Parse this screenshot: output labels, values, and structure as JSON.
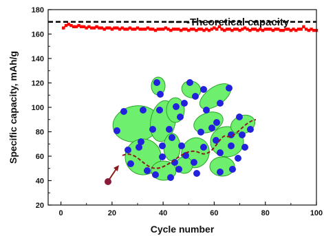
{
  "chart_data": {
    "type": "line",
    "xlabel": "Cycle number",
    "ylabel": "Specific capacity, mAh/g",
    "xlim": [
      -5,
      100
    ],
    "ylim": [
      20,
      180
    ],
    "xticks": [
      0,
      20,
      40,
      60,
      80,
      100
    ],
    "yticks": [
      20,
      40,
      60,
      80,
      100,
      120,
      140,
      160,
      180
    ],
    "grid": false,
    "legend_position": "top-right",
    "reference_lines": [
      {
        "name": "-Theoretical capacity",
        "y": 170,
        "style": "dashed",
        "color": "#000000"
      }
    ],
    "series": [
      {
        "color": "#ff0000",
        "marker": "square",
        "x": [
          1,
          2,
          3,
          4,
          5,
          6,
          7,
          8,
          9,
          10,
          11,
          12,
          13,
          14,
          15,
          16,
          17,
          18,
          19,
          20,
          21,
          22,
          23,
          24,
          25,
          26,
          27,
          28,
          29,
          30,
          31,
          32,
          33,
          34,
          35,
          36,
          37,
          38,
          39,
          40,
          41,
          42,
          43,
          44,
          45,
          46,
          47,
          48,
          49,
          50,
          51,
          52,
          53,
          54,
          55,
          56,
          57,
          58,
          59,
          60,
          61,
          62,
          63,
          64,
          65,
          66,
          67,
          68,
          69,
          70,
          71,
          72,
          73,
          74,
          75,
          76,
          77,
          78,
          79,
          80,
          81,
          82,
          83,
          84,
          85,
          86,
          87,
          88,
          89,
          90,
          91,
          92,
          93,
          94,
          95,
          96,
          97,
          98,
          99,
          100
        ],
        "y": [
          165,
          167,
          168,
          167,
          166,
          166,
          167,
          166,
          166,
          165,
          166,
          165,
          165,
          166,
          165,
          165,
          164,
          165,
          165,
          164,
          165,
          165,
          164,
          165,
          164,
          164,
          165,
          164,
          164,
          165,
          164,
          164,
          164,
          165,
          164,
          164,
          163,
          164,
          164,
          164,
          165,
          164,
          163,
          164,
          164,
          164,
          163,
          164,
          164,
          163,
          164,
          164,
          163,
          164,
          164,
          163,
          164,
          163,
          164,
          165,
          164,
          166,
          164,
          163,
          164,
          164,
          163,
          164,
          164,
          163,
          164,
          165,
          164,
          163,
          164,
          164,
          163,
          164,
          163,
          164,
          164,
          164,
          163,
          164,
          164,
          163,
          163,
          164,
          164,
          163,
          164,
          163,
          164,
          164,
          166,
          164,
          163,
          164,
          163,
          163
        ]
      }
    ]
  }
}
